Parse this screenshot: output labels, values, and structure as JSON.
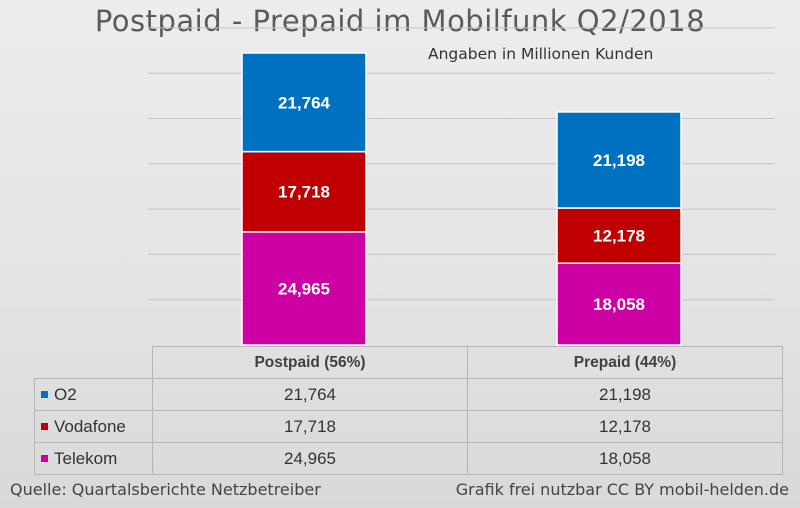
{
  "chart_data": {
    "type": "bar",
    "stacked": true,
    "title": "Postpaid - Prepaid im Mobilfunk Q2/2018",
    "subtitle": "Angaben in Millionen Kunden",
    "categories": [
      "Postpaid (56%)",
      "Prepaid (44%)"
    ],
    "series": [
      {
        "name": "Telekom",
        "color": "#cc00a3",
        "values": [
          24.965,
          18.058
        ],
        "labels": [
          "24,965",
          "18,058"
        ]
      },
      {
        "name": "Vodafone",
        "color": "#c00000",
        "values": [
          17.718,
          12.178
        ],
        "labels": [
          "17,718",
          "12,178"
        ]
      },
      {
        "name": "O2",
        "color": "#0070c0",
        "values": [
          21.764,
          21.198
        ],
        "labels": [
          "21,764",
          "21,198"
        ]
      }
    ],
    "ylim": [
      0,
      70
    ],
    "grid": true,
    "xlabel": "",
    "ylabel": ""
  },
  "table": {
    "rows": [
      {
        "name": "O2",
        "color": "#0070c0",
        "values": [
          "21,764",
          "21,198"
        ]
      },
      {
        "name": "Vodafone",
        "color": "#c00000",
        "values": [
          "17,718",
          "12,178"
        ]
      },
      {
        "name": "Telekom",
        "color": "#cc00a3",
        "values": [
          "24,965",
          "18,058"
        ]
      }
    ]
  },
  "footer": {
    "source": "Quelle: Quartalsberichte Netzbetreiber",
    "license": "Grafik frei nutzbar CC BY mobil-helden.de"
  }
}
